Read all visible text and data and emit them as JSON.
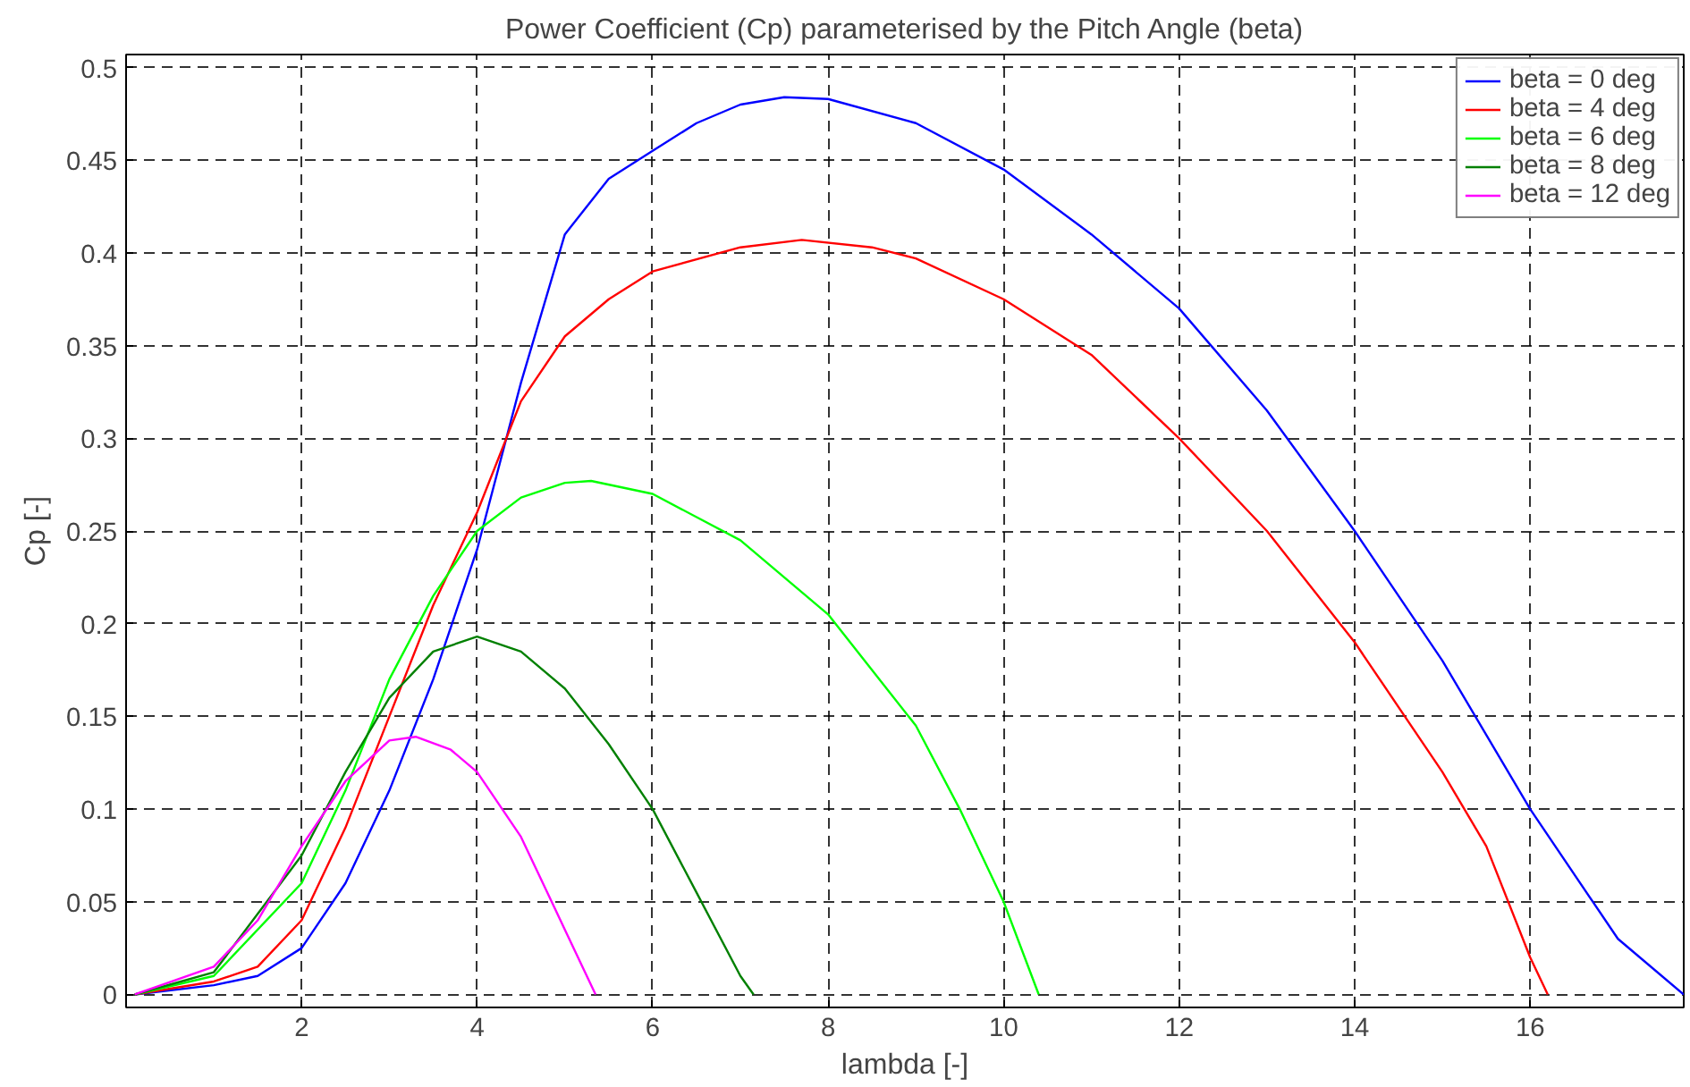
{
  "chart_data": {
    "type": "line",
    "title": "Power Coefficient (Cp) parameterised by the Pitch Angle (beta)",
    "xlabel": "lambda [-]",
    "ylabel": "Cp [-]",
    "xlim": [
      0,
      17.75
    ],
    "ylim": [
      -0.007,
      0.507
    ],
    "xticks": [
      2,
      4,
      6,
      8,
      10,
      12,
      14,
      16
    ],
    "yticks": [
      0,
      0.05,
      0.1,
      0.15,
      0.2,
      0.25,
      0.3,
      0.35,
      0.4,
      0.45,
      0.5
    ],
    "grid": true,
    "legend": "top right",
    "line_style": "solid",
    "marker": "none",
    "series": [
      {
        "name": "beta = 0 deg",
        "color": "#0000ff",
        "x": [
          0.1,
          1,
          1.5,
          2,
          2.5,
          3,
          3.5,
          4,
          4.5,
          5,
          5.5,
          6,
          6.5,
          7,
          7.5,
          8,
          9,
          10,
          11,
          12,
          13,
          14,
          15,
          16,
          17,
          17.75
        ],
        "values": [
          0,
          0.005,
          0.01,
          0.025,
          0.06,
          0.11,
          0.17,
          0.24,
          0.33,
          0.41,
          0.44,
          0.455,
          0.47,
          0.48,
          0.484,
          0.483,
          0.47,
          0.445,
          0.41,
          0.37,
          0.315,
          0.25,
          0.18,
          0.1,
          0.03,
          0
        ]
      },
      {
        "name": "beta = 4 deg",
        "color": "#ff0000",
        "x": [
          0.1,
          1,
          1.5,
          2,
          2.5,
          3,
          3.5,
          4,
          4.5,
          5,
          5.5,
          6,
          7,
          7.7,
          8.5,
          9,
          10,
          11,
          12,
          13,
          14,
          15,
          15.5,
          16,
          16.2
        ],
        "values": [
          0,
          0.007,
          0.015,
          0.04,
          0.09,
          0.15,
          0.21,
          0.26,
          0.32,
          0.355,
          0.375,
          0.39,
          0.403,
          0.407,
          0.403,
          0.397,
          0.375,
          0.345,
          0.3,
          0.25,
          0.19,
          0.12,
          0.08,
          0.02,
          0
        ]
      },
      {
        "name": "beta = 6 deg",
        "color": "#00ff00",
        "x": [
          0.1,
          1,
          2,
          2.5,
          3,
          3.5,
          4,
          4.5,
          5,
          5.3,
          6,
          7,
          8,
          9,
          9.5,
          10,
          10.4
        ],
        "values": [
          0,
          0.01,
          0.06,
          0.11,
          0.17,
          0.215,
          0.25,
          0.268,
          0.276,
          0.277,
          0.27,
          0.245,
          0.205,
          0.145,
          0.1,
          0.05,
          0
        ]
      },
      {
        "name": "beta = 8 deg",
        "color": "#008000",
        "x": [
          0.1,
          1,
          2,
          2.5,
          3,
          3.5,
          4,
          4.5,
          5,
          5.5,
          6,
          6.5,
          7,
          7.15
        ],
        "values": [
          0,
          0.012,
          0.075,
          0.12,
          0.16,
          0.185,
          0.193,
          0.185,
          0.165,
          0.135,
          0.1,
          0.055,
          0.01,
          0
        ]
      },
      {
        "name": "beta = 12 deg",
        "color": "#ff00ff",
        "x": [
          0.1,
          1,
          1.5,
          2,
          2.5,
          3,
          3.3,
          3.7,
          4,
          4.5,
          5,
          5.35
        ],
        "values": [
          0,
          0.015,
          0.04,
          0.08,
          0.115,
          0.137,
          0.139,
          0.132,
          0.12,
          0.085,
          0.035,
          0
        ]
      }
    ]
  }
}
